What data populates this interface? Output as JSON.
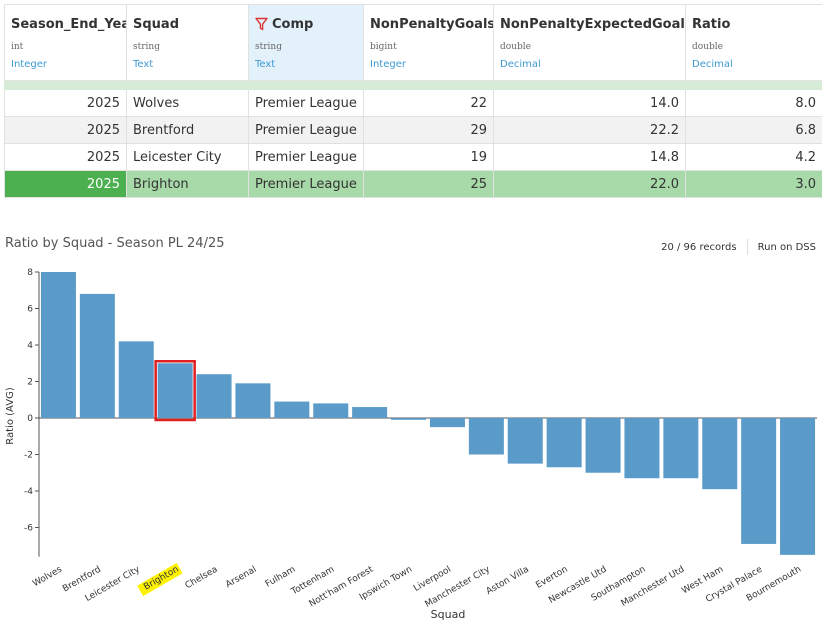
{
  "table": {
    "columns": [
      {
        "name": "Season_End_Year",
        "storage": "int",
        "meaning": "Integer",
        "filtered": false
      },
      {
        "name": "Squad",
        "storage": "string",
        "meaning": "Text",
        "filtered": false
      },
      {
        "name": "Comp",
        "storage": "string",
        "meaning": "Text",
        "filtered": true
      },
      {
        "name": "NonPenaltyGoals",
        "storage": "bigint",
        "meaning": "Integer",
        "filtered": false
      },
      {
        "name": "NonPenaltyExpectedGoals",
        "storage": "double",
        "meaning": "Decimal",
        "filtered": false
      },
      {
        "name": "Ratio",
        "storage": "double",
        "meaning": "Decimal",
        "filtered": false
      }
    ],
    "rows": [
      [
        "2025",
        "Wolves",
        "Premier League",
        "22",
        "14.0",
        "8.0"
      ],
      [
        "2025",
        "Brentford",
        "Premier League",
        "29",
        "22.2",
        "6.8"
      ],
      [
        "2025",
        "Leicester City",
        "Premier League",
        "19",
        "14.8",
        "4.2"
      ],
      [
        "2025",
        "Brighton",
        "Premier League",
        "25",
        "22.0",
        "3.0"
      ]
    ],
    "selected_row": 3
  },
  "chart_header": {
    "title": "Ratio by Squad - Season PL 24/25",
    "records": "20 / 96 records",
    "run_label": "Run on DSS"
  },
  "colors": {
    "bar": "#5b9bc9",
    "highlight_box": "#e02020",
    "highlight_label": "#fff200",
    "selected_row": "#a8d9a8",
    "selected_key": "#4caf50"
  },
  "chart_data": {
    "type": "bar",
    "title": "Ratio by Squad - Season PL 24/25",
    "xlabel": "Squad",
    "ylabel": "Ratio (AVG)",
    "ylim": [
      -7.6,
      8
    ],
    "yticks": [
      8,
      6,
      4,
      2,
      0,
      -2,
      -4,
      -6
    ],
    "categories": [
      "Wolves",
      "Brentford",
      "Leicester City",
      "Brighton",
      "Chelsea",
      "Arsenal",
      "Fulham",
      "Tottenham",
      "Nott'ham Forest",
      "Ipswich Town",
      "Liverpool",
      "Manchester City",
      "Aston Villa",
      "Everton",
      "Newcastle Utd",
      "Southampton",
      "Manchester Utd",
      "West Ham",
      "Crystal Palace",
      "Bournemouth"
    ],
    "values": [
      8.0,
      6.8,
      4.2,
      3.0,
      2.4,
      1.9,
      0.9,
      0.8,
      0.6,
      -0.1,
      -0.5,
      -2.0,
      -2.5,
      -2.7,
      -3.0,
      -3.3,
      -3.3,
      -3.9,
      -6.9,
      -7.5
    ],
    "highlight": "Brighton",
    "grid": false,
    "legend": "none"
  }
}
